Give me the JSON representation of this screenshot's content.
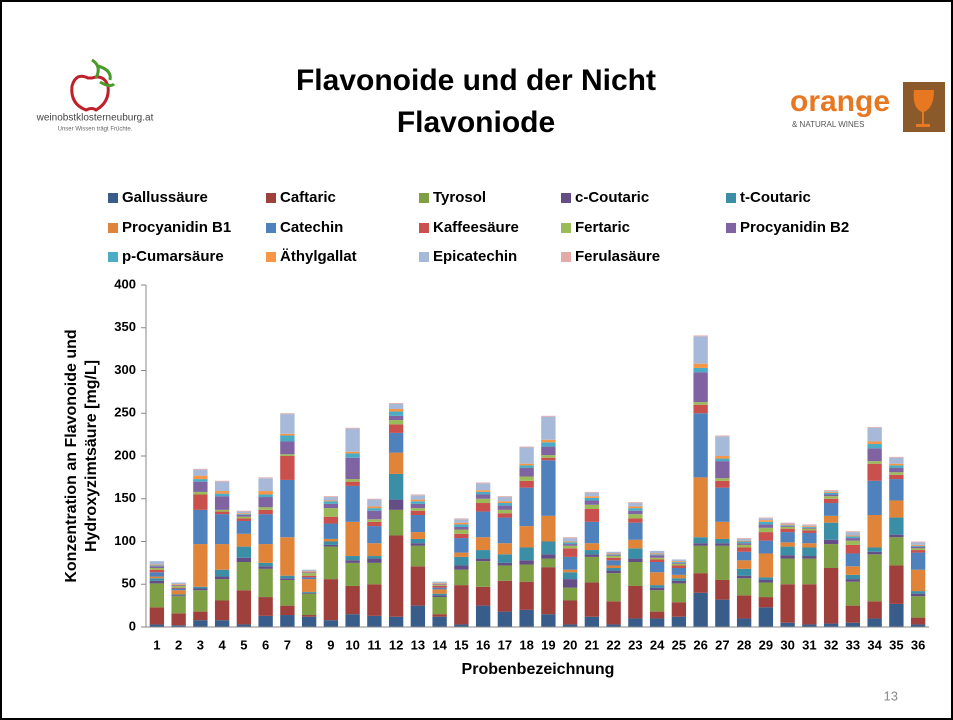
{
  "logo_left": {
    "name": "weinobstklosterneuburg.at",
    "slogan": "Unser Wissen trägt Früchte."
  },
  "logo_right": {
    "name": "orange",
    "subtitle": "& NATURAL WINES"
  },
  "page_number": "13",
  "chart_data": {
    "type": "stacked_bar",
    "title": [
      "Flavonoide und der Nicht",
      "Flavoniode"
    ],
    "xlabel": "Probenbezeichnung",
    "ylabel": [
      "Konzentration an Flavonoide und",
      "Hydroxyzimtsäure [mg/L]"
    ],
    "ylim": [
      0,
      400
    ],
    "yticks": [
      0,
      50,
      100,
      150,
      200,
      250,
      300,
      350,
      400
    ],
    "grid": false,
    "legend": "top",
    "categories": [
      "1",
      "2",
      "3",
      "4",
      "5",
      "6",
      "7",
      "8",
      "9",
      "10",
      "11",
      "12",
      "13",
      "14",
      "15",
      "16",
      "17",
      "18",
      "19",
      "20",
      "21",
      "22",
      "23",
      "24",
      "25",
      "26",
      "27",
      "28",
      "29",
      "30",
      "31",
      "32",
      "33",
      "34",
      "35",
      "36"
    ],
    "series": [
      {
        "name": "Gallussäure",
        "color": "#385d8a",
        "values": [
          3,
          2,
          8,
          8,
          3,
          13,
          14,
          12,
          8,
          15,
          13,
          12,
          25,
          12,
          3,
          25,
          18,
          20,
          15,
          3,
          12,
          3,
          10,
          10,
          12,
          40,
          32,
          10,
          23,
          5,
          3,
          4,
          5,
          10,
          27,
          3
        ]
      },
      {
        "name": "Caftaric",
        "color": "#a0403d",
        "values": [
          20,
          14,
          10,
          23,
          40,
          22,
          11,
          2,
          48,
          33,
          37,
          95,
          46,
          3,
          46,
          22,
          36,
          33,
          55,
          28,
          40,
          27,
          38,
          8,
          17,
          23,
          23,
          27,
          12,
          45,
          47,
          65,
          20,
          20,
          45,
          8
        ]
      },
      {
        "name": "Tyrosol",
        "color": "#7f9f45",
        "values": [
          28,
          20,
          25,
          25,
          33,
          33,
          30,
          25,
          38,
          27,
          25,
          30,
          24,
          20,
          18,
          30,
          18,
          20,
          10,
          15,
          30,
          33,
          28,
          25,
          22,
          32,
          40,
          20,
          17,
          30,
          30,
          28,
          28,
          55,
          33,
          25
        ]
      },
      {
        "name": "c-Coutaric",
        "color": "#654d85",
        "values": [
          3,
          1,
          2,
          3,
          5,
          3,
          2,
          1,
          2,
          3,
          5,
          12,
          3,
          2,
          5,
          3,
          3,
          5,
          5,
          10,
          3,
          3,
          4,
          3,
          3,
          3,
          3,
          3,
          3,
          4,
          3,
          5,
          3,
          3,
          3,
          3
        ]
      },
      {
        "name": "t-Coutaric",
        "color": "#3a8fa6",
        "values": [
          3,
          1,
          2,
          8,
          13,
          4,
          3,
          1,
          4,
          5,
          3,
          30,
          5,
          2,
          10,
          10,
          10,
          15,
          15,
          8,
          5,
          3,
          12,
          3,
          3,
          7,
          5,
          8,
          3,
          10,
          10,
          20,
          5,
          5,
          20,
          3
        ]
      },
      {
        "name": "Procyanidin B1",
        "color": "#e0843a",
        "values": [
          2,
          5,
          50,
          30,
          15,
          22,
          45,
          15,
          3,
          40,
          15,
          25,
          8,
          5,
          5,
          15,
          13,
          25,
          30,
          3,
          8,
          3,
          10,
          15,
          4,
          70,
          20,
          10,
          28,
          5,
          5,
          8,
          10,
          38,
          20,
          25
        ]
      },
      {
        "name": "Catechin",
        "color": "#4f81bd",
        "values": [
          5,
          2,
          40,
          35,
          15,
          35,
          67,
          2,
          18,
          42,
          20,
          23,
          20,
          2,
          17,
          30,
          30,
          45,
          65,
          15,
          25,
          6,
          20,
          12,
          8,
          75,
          40,
          10,
          15,
          12,
          12,
          15,
          15,
          40,
          25,
          20
        ]
      },
      {
        "name": "Kaffeesäure",
        "color": "#c9504d",
        "values": [
          3,
          1,
          18,
          3,
          3,
          5,
          28,
          2,
          8,
          5,
          5,
          10,
          5,
          2,
          5,
          10,
          5,
          8,
          3,
          10,
          15,
          3,
          5,
          3,
          3,
          10,
          8,
          5,
          10,
          4,
          3,
          5,
          10,
          20,
          5,
          3
        ]
      },
      {
        "name": "Fertaric",
        "color": "#9bbb59",
        "values": [
          2,
          2,
          3,
          2,
          2,
          3,
          2,
          3,
          10,
          3,
          3,
          5,
          3,
          1,
          5,
          5,
          4,
          5,
          3,
          3,
          5,
          2,
          5,
          2,
          2,
          3,
          3,
          3,
          5,
          2,
          2,
          3,
          5,
          3,
          3,
          2
        ]
      },
      {
        "name": "Procyanidin B2",
        "color": "#8064a2",
        "values": [
          2,
          1,
          12,
          16,
          2,
          12,
          15,
          1,
          5,
          25,
          10,
          5,
          5,
          1,
          3,
          5,
          5,
          10,
          10,
          2,
          5,
          1,
          4,
          3,
          1,
          35,
          20,
          2,
          4,
          1,
          1,
          2,
          3,
          15,
          5,
          2
        ]
      },
      {
        "name": "p-Cumarsäure",
        "color": "#4bacc6",
        "values": [
          1,
          0,
          3,
          3,
          1,
          3,
          7,
          0,
          3,
          5,
          3,
          5,
          3,
          0,
          3,
          3,
          3,
          3,
          5,
          2,
          3,
          1,
          3,
          1,
          1,
          5,
          3,
          2,
          3,
          1,
          1,
          2,
          2,
          5,
          3,
          1
        ]
      },
      {
        "name": "Äthylgallat",
        "color": "#f79646",
        "values": [
          1,
          1,
          4,
          3,
          1,
          4,
          2,
          1,
          1,
          2,
          2,
          3,
          2,
          1,
          2,
          2,
          2,
          2,
          3,
          1,
          2,
          1,
          2,
          1,
          1,
          5,
          3,
          1,
          2,
          1,
          1,
          1,
          1,
          3,
          2,
          1
        ]
      },
      {
        "name": "Epicatechin",
        "color": "#a7b9d8",
        "values": [
          4,
          2,
          7,
          11,
          2,
          15,
          23,
          2,
          4,
          27,
          8,
          6,
          5,
          2,
          4,
          8,
          5,
          19,
          27,
          4,
          4,
          2,
          4,
          3,
          2,
          32,
          23,
          2,
          2,
          1,
          1,
          1,
          4,
          16,
          7,
          3
        ]
      },
      {
        "name": "Ferulasäure",
        "color": "#e4aaa8",
        "values": [
          0,
          0,
          1,
          1,
          1,
          1,
          1,
          0,
          1,
          1,
          1,
          1,
          1,
          0,
          1,
          1,
          1,
          1,
          1,
          1,
          1,
          0,
          1,
          0,
          0,
          1,
          1,
          1,
          1,
          1,
          1,
          1,
          1,
          1,
          1,
          1
        ]
      }
    ]
  }
}
